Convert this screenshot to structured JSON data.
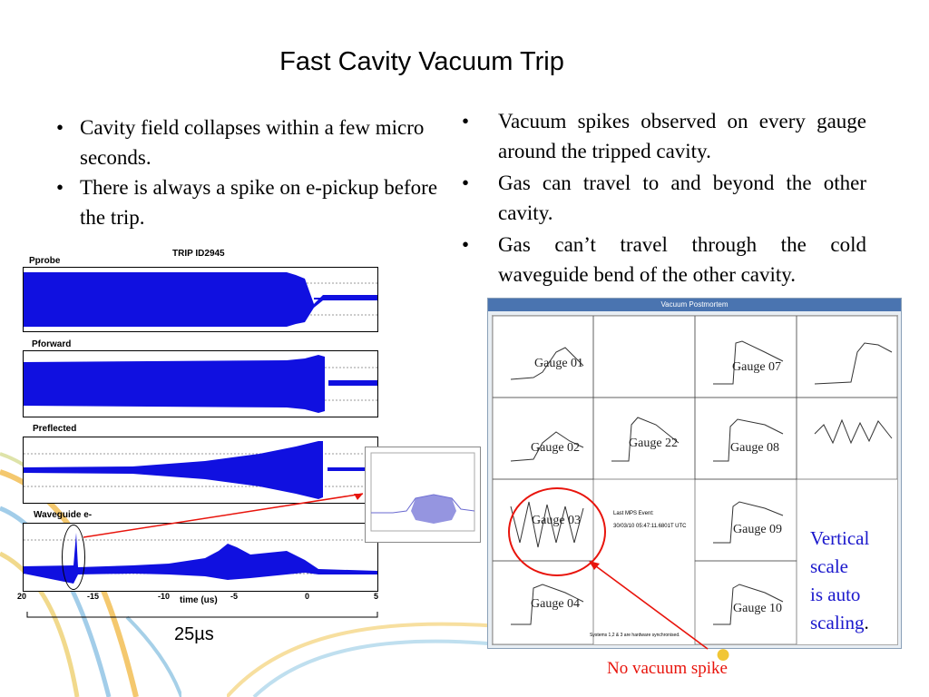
{
  "title": "Fast Cavity Vacuum Trip",
  "bullets_left": [
    "Cavity field collapses within a few micro seconds.",
    "There is always a spike on e-pickup before the trip."
  ],
  "bullets_right": [
    "Vacuum spikes observed on every gauge around the tripped cavity.",
    "Gas can travel to and beyond the other cavity.",
    "Gas can’t travel through the cold waveguide bend of the other cavity."
  ],
  "trip_plot": {
    "title": "TRIP ID2945",
    "channels": [
      "Pprobe",
      "Pforward",
      "Preflected",
      "Waveguide e-"
    ],
    "xlabel": "time (us)",
    "xticks": [
      "20",
      "-15",
      "-10",
      "-5",
      "0",
      "5"
    ],
    "span_label": "25µs",
    "trace_color": "#1010e0"
  },
  "postmortem": {
    "window_title": "Vacuum Postmortem",
    "gauges": [
      "Gauge 01",
      "Gauge 07",
      "Gauge 02",
      "Gauge 22",
      "Gauge 08",
      "Gauge 03",
      "Gauge 09",
      "Gauge 04",
      "Gauge 10"
    ],
    "event_text": [
      "Last MPS Event:",
      "30/03/10 05:47:11.6801T UTC"
    ],
    "sync_text": "Systems 1,2 & 3 are hardware synchronised."
  },
  "scale_note": [
    "Vertical",
    "scale",
    "is auto",
    "scaling",
    "."
  ],
  "no_spike_label": "No vacuum spike",
  "colors": {
    "annotation_red": "#e8140c",
    "note_blue": "#1a17cc"
  }
}
